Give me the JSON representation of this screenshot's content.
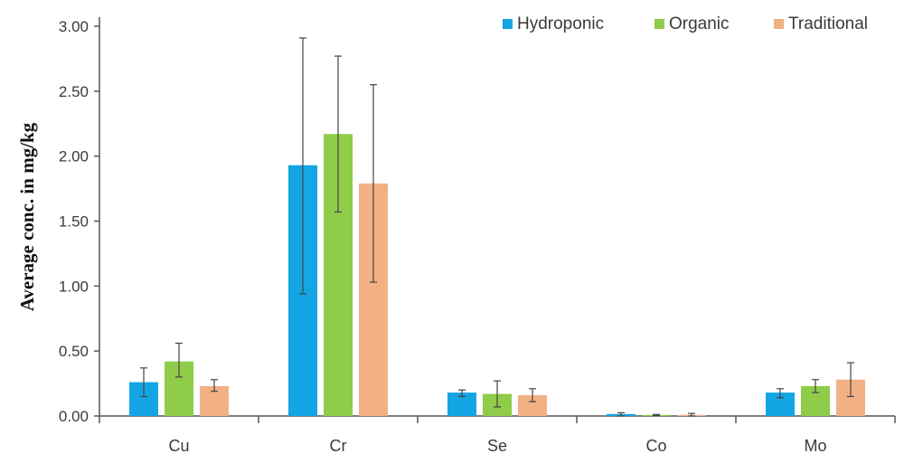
{
  "chart_data": {
    "type": "bar",
    "title": "",
    "xlabel": "",
    "ylabel": "Average conc. in mg/kg",
    "ylim": [
      0,
      3.0
    ],
    "yticks": [
      "0.00",
      "0.50",
      "1.00",
      "1.50",
      "2.00",
      "2.50",
      "3.00"
    ],
    "grid": false,
    "legend_position": "top-right",
    "categories": [
      "Cu",
      "Cr",
      "Se",
      "Co",
      "Mo"
    ],
    "series": [
      {
        "name": "Hydroponic",
        "color": "#14a5e4",
        "values": [
          0.26,
          1.93,
          0.18,
          0.015,
          0.18
        ],
        "err_low": [
          0.15,
          0.94,
          0.15,
          0.0,
          0.14
        ],
        "err_high": [
          0.37,
          2.91,
          0.2,
          0.025,
          0.21
        ]
      },
      {
        "name": "Organic",
        "color": "#8fcc4a",
        "values": [
          0.42,
          2.17,
          0.17,
          0.008,
          0.23
        ],
        "err_low": [
          0.3,
          1.57,
          0.07,
          0.004,
          0.18
        ],
        "err_high": [
          0.56,
          2.77,
          0.27,
          0.012,
          0.28
        ]
      },
      {
        "name": "Traditional",
        "color": "#f2b185",
        "values": [
          0.23,
          1.79,
          0.16,
          0.008,
          0.28
        ],
        "err_low": [
          0.19,
          1.03,
          0.11,
          0.0,
          0.15
        ],
        "err_high": [
          0.28,
          2.55,
          0.21,
          0.02,
          0.41
        ]
      }
    ]
  }
}
